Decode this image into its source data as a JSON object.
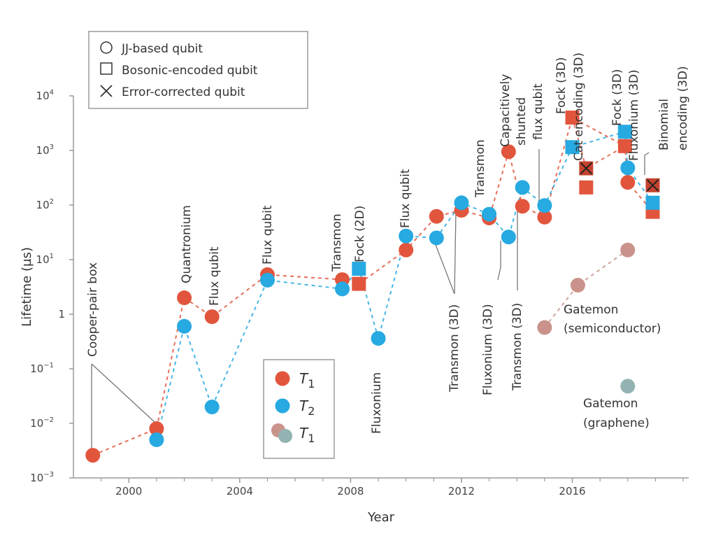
{
  "chart_data": {
    "type": "scatter",
    "xlabel": "Year",
    "ylabel": "Lifetime (µs)",
    "yscale": "log",
    "xlim": [
      1998,
      2020.2
    ],
    "ylim_log10": [
      -3,
      4
    ],
    "xticks": [
      2000,
      2004,
      2008,
      2012,
      2016
    ],
    "yticks": [
      {
        "exp": 4,
        "label": "10",
        "sup": "4"
      },
      {
        "exp": 3,
        "label": "10",
        "sup": "3"
      },
      {
        "exp": 2,
        "label": "10",
        "sup": "2"
      },
      {
        "exp": 1,
        "label": "10",
        "sup": "1"
      },
      {
        "exp": 0,
        "label": "1",
        "sup": ""
      },
      {
        "exp": -1,
        "label": "10",
        "sup": "−1"
      },
      {
        "exp": -2,
        "label": "10",
        "sup": "−2"
      },
      {
        "exp": -3,
        "label": "10",
        "sup": "−3"
      }
    ],
    "colors": {
      "T1": "#e2553d",
      "T2": "#27a9e1",
      "gatemon_semi": "#c9938b",
      "gatemon_graphene": "#93b3b2",
      "axis": "#9a9a9a"
    },
    "series": [
      {
        "name": "T1 JJ-based",
        "marker": "circle",
        "color_key": "T1",
        "points": [
          [
            1998.7,
            0.0026
          ],
          [
            2001,
            0.008
          ],
          [
            2002,
            2
          ],
          [
            2003,
            0.9
          ],
          [
            2005,
            5.3
          ],
          [
            2007.7,
            4.3
          ],
          [
            2010,
            15
          ],
          [
            2011.1,
            62
          ],
          [
            2012,
            80
          ],
          [
            2013,
            58
          ],
          [
            2013.7,
            950
          ],
          [
            2014.2,
            95
          ],
          [
            2015,
            60
          ],
          [
            2018,
            260
          ]
        ]
      },
      {
        "name": "T2 JJ-based",
        "marker": "circle",
        "color_key": "T2",
        "points": [
          [
            2001,
            0.005
          ],
          [
            2002,
            0.6
          ],
          [
            2003,
            0.02
          ],
          [
            2005,
            4.2
          ],
          [
            2007.7,
            2.9
          ],
          [
            2009,
            0.36
          ],
          [
            2010,
            27
          ],
          [
            2011.1,
            25
          ],
          [
            2012,
            110
          ],
          [
            2013,
            68
          ],
          [
            2013.7,
            26
          ],
          [
            2014.2,
            210
          ],
          [
            2015,
            98
          ],
          [
            2018,
            480
          ]
        ]
      },
      {
        "name": "T1 bosonic",
        "marker": "square",
        "color_key": "T1",
        "points": [
          [
            2008.3,
            3.6
          ],
          [
            2016,
            4000
          ],
          [
            2016.5,
            210
          ],
          [
            2017.9,
            1200
          ],
          [
            2018.9,
            75
          ]
        ]
      },
      {
        "name": "T2 bosonic",
        "marker": "square",
        "color_key": "T2",
        "points": [
          [
            2008.3,
            6.8
          ],
          [
            2016,
            1150
          ],
          [
            2017.9,
            2200
          ],
          [
            2018.9,
            110
          ]
        ]
      },
      {
        "name": "Error-corrected",
        "marker": "x-square",
        "color_key": "T1",
        "points": [
          [
            2016.5,
            470
          ],
          [
            2018.9,
            230
          ]
        ]
      },
      {
        "name": "T1 Gatemon (semiconductor)",
        "marker": "circle",
        "color_key": "gatemon_semi",
        "points": [
          [
            2015,
            0.57
          ],
          [
            2016.2,
            3.4
          ],
          [
            2018,
            15
          ]
        ]
      },
      {
        "name": "T1 Gatemon (graphene)",
        "marker": "circle",
        "color_key": "gatemon_graphene",
        "points": [
          [
            2018,
            0.048
          ]
        ]
      }
    ],
    "annotations": [
      "Cooper-pair box",
      "Quantronium",
      "Flux qubit",
      "Flux qubit",
      "Transmon",
      "Fock (2D)",
      "Fluxonium",
      "Flux qubit",
      "Transmon (3D)",
      "Fluxonium (3D)",
      "Transmon (3D)",
      "Transmon",
      "Capacitively",
      "shunted",
      "flux qubit",
      "Fock (3D)",
      "Cat encoding (3D)",
      "Fock (3D)",
      "Fluxonium (3D)",
      "Binomial",
      "encoding (3D)",
      "Gatemon",
      "(semiconductor)",
      "Gatemon",
      "(graphene)"
    ],
    "legend_markers": {
      "items": [
        "JJ-based qubit",
        "Bosonic-encoded qubit",
        "Error-corrected qubit"
      ],
      "placement": "top-left"
    },
    "legend_series": {
      "items": [
        "T1",
        "T2",
        "T1"
      ],
      "placement": "bottom-center"
    }
  }
}
